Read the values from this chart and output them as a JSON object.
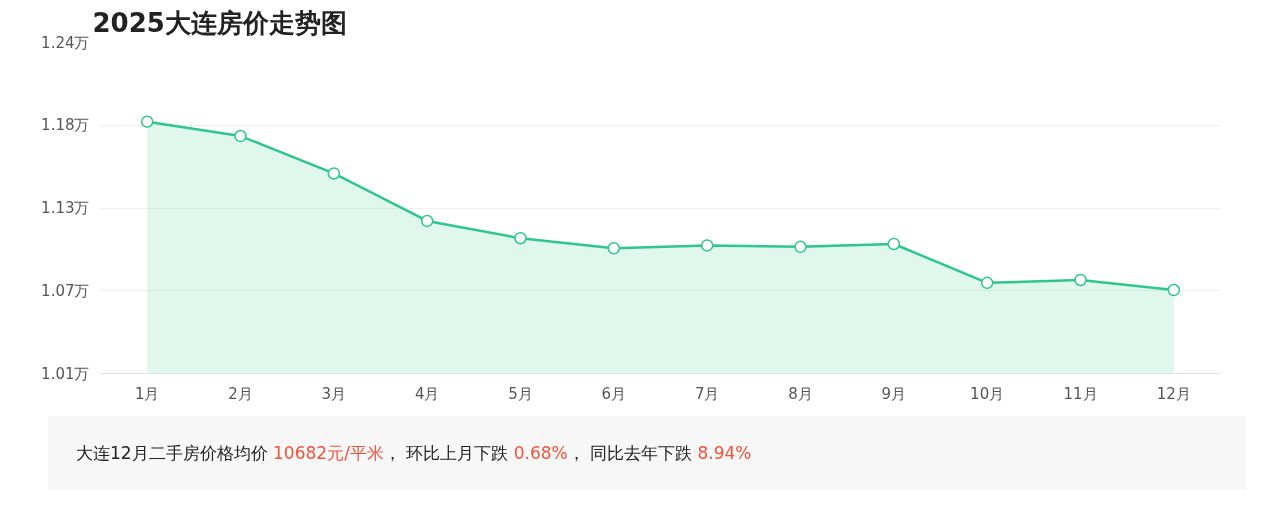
{
  "chart_data": {
    "type": "area",
    "title": "2025大连房价走势图",
    "categories": [
      "1月",
      "2月",
      "3月",
      "4月",
      "5月",
      "6月",
      "7月",
      "8月",
      "9月",
      "10月",
      "11月",
      "12月"
    ],
    "series": [
      {
        "color": "#2ec68c",
        "values": [
          1.185,
          1.175,
          1.149,
          1.116,
          1.104,
          1.097,
          1.099,
          1.098,
          1.1,
          1.073,
          1.075,
          1.068
        ]
      }
    ],
    "ylim": [
      1.01,
      1.24
    ],
    "yticks": [
      {
        "value": 1.01,
        "label": "1.01万"
      },
      {
        "value": 1.0675,
        "label": "1.07万"
      },
      {
        "value": 1.125,
        "label": "1.13万"
      },
      {
        "value": 1.1825,
        "label": "1.18万"
      },
      {
        "value": 1.24,
        "label": "1.24万"
      }
    ],
    "grid": "y",
    "marker": "circle",
    "annotations": [
      "大连12月二手房价格均价 ",
      "10682元/平米",
      "， 环比上月下跌 ",
      "0.68%",
      "， 同比去年下跌 ",
      "8.94%"
    ]
  }
}
